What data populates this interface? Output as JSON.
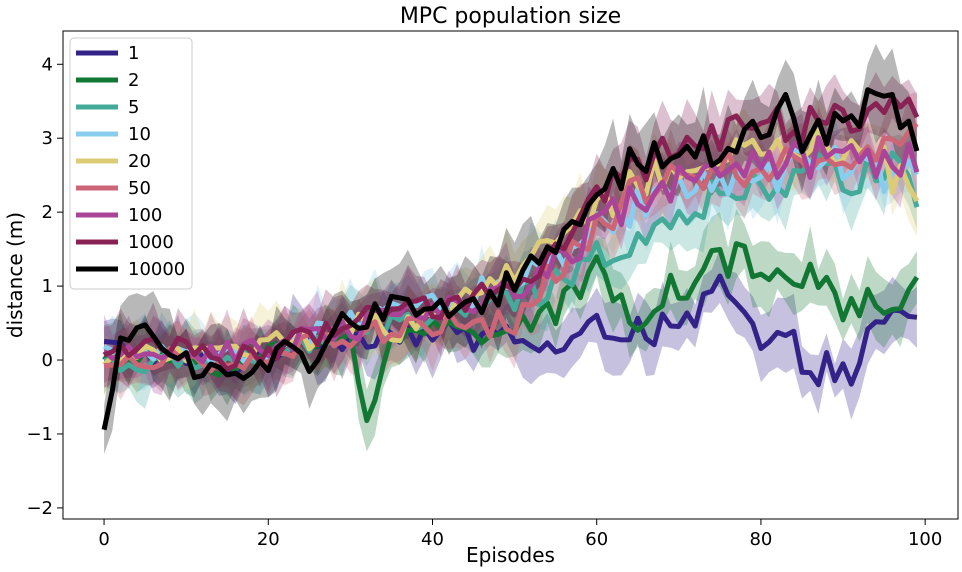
{
  "chart_data": {
    "type": "line",
    "title": "MPC population size",
    "xlabel": "Episodes",
    "ylabel": "distance (m)",
    "xlim": [
      -5,
      104
    ],
    "ylim": [
      -2.15,
      4.45
    ],
    "xticks": [
      0,
      20,
      40,
      60,
      80,
      100
    ],
    "yticks": [
      -2,
      -1,
      0,
      1,
      2,
      3,
      4
    ],
    "xtick_labels": [
      "0",
      "20",
      "40",
      "60",
      "80",
      "100"
    ],
    "ytick_labels": [
      "−2",
      "−1",
      "0",
      "1",
      "2",
      "3",
      "4"
    ],
    "legend_position": "top-left",
    "x_step": 1,
    "x_count": 100,
    "series": [
      {
        "name": "1",
        "color": "#332288",
        "band": 0.35,
        "anchors": [
          [
            0,
            0.2
          ],
          [
            5,
            0.1
          ],
          [
            10,
            0.0
          ],
          [
            15,
            -0.1
          ],
          [
            20,
            0.1
          ],
          [
            25,
            0.3
          ],
          [
            30,
            0.3
          ],
          [
            35,
            0.4
          ],
          [
            40,
            0.35
          ],
          [
            45,
            0.3
          ],
          [
            50,
            0.35
          ],
          [
            55,
            0.1
          ],
          [
            60,
            0.4
          ],
          [
            65,
            0.5
          ],
          [
            70,
            0.3
          ],
          [
            75,
            1.0
          ],
          [
            80,
            0.2
          ],
          [
            85,
            0.1
          ],
          [
            90,
            -0.3
          ],
          [
            95,
            0.5
          ],
          [
            99,
            0.5
          ]
        ]
      },
      {
        "name": "2",
        "color": "#117733",
        "band": 0.35,
        "anchors": [
          [
            0,
            0.1
          ],
          [
            5,
            0.0
          ],
          [
            10,
            0.05
          ],
          [
            15,
            -0.1
          ],
          [
            20,
            0.1
          ],
          [
            25,
            0.2
          ],
          [
            30,
            0.3
          ],
          [
            32,
            -0.7
          ],
          [
            35,
            0.3
          ],
          [
            40,
            0.4
          ],
          [
            45,
            0.4
          ],
          [
            50,
            0.5
          ],
          [
            55,
            0.6
          ],
          [
            60,
            1.2
          ],
          [
            65,
            0.6
          ],
          [
            70,
            1.0
          ],
          [
            75,
            1.4
          ],
          [
            80,
            1.2
          ],
          [
            85,
            1.1
          ],
          [
            90,
            0.8
          ],
          [
            95,
            0.7
          ],
          [
            99,
            0.9
          ]
        ]
      },
      {
        "name": "5",
        "color": "#44AA99",
        "band": 0.35,
        "anchors": [
          [
            0,
            0.0
          ],
          [
            5,
            -0.1
          ],
          [
            10,
            0.0
          ],
          [
            15,
            0.0
          ],
          [
            20,
            0.05
          ],
          [
            25,
            0.2
          ],
          [
            30,
            0.4
          ],
          [
            35,
            0.5
          ],
          [
            40,
            0.6
          ],
          [
            45,
            0.7
          ],
          [
            50,
            0.8
          ],
          [
            55,
            1.0
          ],
          [
            60,
            1.4
          ],
          [
            65,
            1.7
          ],
          [
            70,
            2.0
          ],
          [
            75,
            2.2
          ],
          [
            80,
            2.4
          ],
          [
            85,
            2.5
          ],
          [
            90,
            2.5
          ],
          [
            95,
            2.6
          ],
          [
            99,
            2.3
          ]
        ]
      },
      {
        "name": "10",
        "color": "#88CCEE",
        "band": 0.35,
        "anchors": [
          [
            0,
            0.1
          ],
          [
            5,
            0.1
          ],
          [
            10,
            0.0
          ],
          [
            15,
            0.1
          ],
          [
            20,
            0.15
          ],
          [
            25,
            0.3
          ],
          [
            30,
            0.5
          ],
          [
            35,
            0.6
          ],
          [
            40,
            0.7
          ],
          [
            45,
            0.9
          ],
          [
            50,
            1.1
          ],
          [
            55,
            1.4
          ],
          [
            60,
            1.8
          ],
          [
            65,
            2.1
          ],
          [
            70,
            2.3
          ],
          [
            75,
            2.5
          ],
          [
            80,
            2.5
          ],
          [
            85,
            2.6
          ],
          [
            90,
            2.6
          ],
          [
            95,
            2.5
          ],
          [
            99,
            2.6
          ]
        ]
      },
      {
        "name": "20",
        "color": "#DDCC77",
        "band": 0.35,
        "anchors": [
          [
            0,
            0.0
          ],
          [
            5,
            0.1
          ],
          [
            10,
            0.1
          ],
          [
            15,
            0.1
          ],
          [
            20,
            0.2
          ],
          [
            25,
            0.3
          ],
          [
            30,
            0.5
          ],
          [
            35,
            0.4
          ],
          [
            40,
            0.6
          ],
          [
            45,
            0.9
          ],
          [
            50,
            1.2
          ],
          [
            55,
            1.6
          ],
          [
            60,
            2.0
          ],
          [
            65,
            2.4
          ],
          [
            70,
            2.6
          ],
          [
            75,
            2.7
          ],
          [
            80,
            2.8
          ],
          [
            85,
            2.9
          ],
          [
            90,
            2.8
          ],
          [
            95,
            2.6
          ],
          [
            99,
            2.1
          ]
        ]
      },
      {
        "name": "50",
        "color": "#CC6677",
        "band": 0.35,
        "anchors": [
          [
            0,
            -0.1
          ],
          [
            5,
            0.0
          ],
          [
            10,
            0.1
          ],
          [
            15,
            -0.2
          ],
          [
            20,
            0.0
          ],
          [
            25,
            0.2
          ],
          [
            30,
            0.3
          ],
          [
            35,
            0.4
          ],
          [
            40,
            0.5
          ],
          [
            45,
            0.4
          ],
          [
            50,
            0.5
          ],
          [
            55,
            1.2
          ],
          [
            60,
            1.8
          ],
          [
            65,
            2.3
          ],
          [
            70,
            2.5
          ],
          [
            75,
            2.6
          ],
          [
            80,
            2.6
          ],
          [
            85,
            2.7
          ],
          [
            90,
            2.7
          ],
          [
            95,
            2.8
          ],
          [
            99,
            3.0
          ]
        ]
      },
      {
        "name": "100",
        "color": "#AA4499",
        "band": 0.35,
        "anchors": [
          [
            0,
            0.0
          ],
          [
            5,
            0.1
          ],
          [
            10,
            0.1
          ],
          [
            15,
            0.1
          ],
          [
            20,
            0.2
          ],
          [
            25,
            0.3
          ],
          [
            30,
            0.4
          ],
          [
            35,
            0.6
          ],
          [
            40,
            0.7
          ],
          [
            45,
            0.8
          ],
          [
            50,
            1.0
          ],
          [
            55,
            1.3
          ],
          [
            60,
            1.8
          ],
          [
            65,
            2.2
          ],
          [
            70,
            2.4
          ],
          [
            75,
            2.6
          ],
          [
            80,
            2.6
          ],
          [
            85,
            2.7
          ],
          [
            90,
            2.8
          ],
          [
            95,
            2.7
          ],
          [
            99,
            2.8
          ]
        ]
      },
      {
        "name": "1000",
        "color": "#882255",
        "band": 0.35,
        "anchors": [
          [
            0,
            0.1
          ],
          [
            5,
            0.2
          ],
          [
            10,
            0.2
          ],
          [
            15,
            0.0
          ],
          [
            20,
            0.1
          ],
          [
            25,
            0.3
          ],
          [
            30,
            0.5
          ],
          [
            35,
            0.6
          ],
          [
            40,
            0.7
          ],
          [
            45,
            0.9
          ],
          [
            50,
            1.1
          ],
          [
            55,
            1.5
          ],
          [
            60,
            2.2
          ],
          [
            65,
            2.6
          ],
          [
            70,
            2.9
          ],
          [
            75,
            3.0
          ],
          [
            80,
            3.2
          ],
          [
            85,
            3.2
          ],
          [
            90,
            3.3
          ],
          [
            95,
            3.3
          ],
          [
            99,
            3.4
          ]
        ]
      },
      {
        "name": "10000",
        "color": "#000000",
        "band": 0.45,
        "anchors": [
          [
            0,
            -1.0
          ],
          [
            2,
            0.2
          ],
          [
            5,
            0.6
          ],
          [
            8,
            0.0
          ],
          [
            10,
            0.0
          ],
          [
            12,
            -0.2
          ],
          [
            15,
            -0.1
          ],
          [
            18,
            -0.2
          ],
          [
            20,
            -0.1
          ],
          [
            22,
            0.2
          ],
          [
            25,
            -0.2
          ],
          [
            28,
            0.5
          ],
          [
            30,
            0.5
          ],
          [
            35,
            0.7
          ],
          [
            40,
            0.6
          ],
          [
            45,
            0.7
          ],
          [
            50,
            1.1
          ],
          [
            55,
            1.5
          ],
          [
            58,
            2.0
          ],
          [
            60,
            2.1
          ],
          [
            62,
            2.4
          ],
          [
            65,
            2.8
          ],
          [
            70,
            2.7
          ],
          [
            75,
            2.9
          ],
          [
            80,
            3.0
          ],
          [
            83,
            3.5
          ],
          [
            85,
            2.9
          ],
          [
            90,
            3.1
          ],
          [
            93,
            3.6
          ],
          [
            96,
            3.6
          ],
          [
            99,
            2.8
          ]
        ]
      }
    ]
  }
}
